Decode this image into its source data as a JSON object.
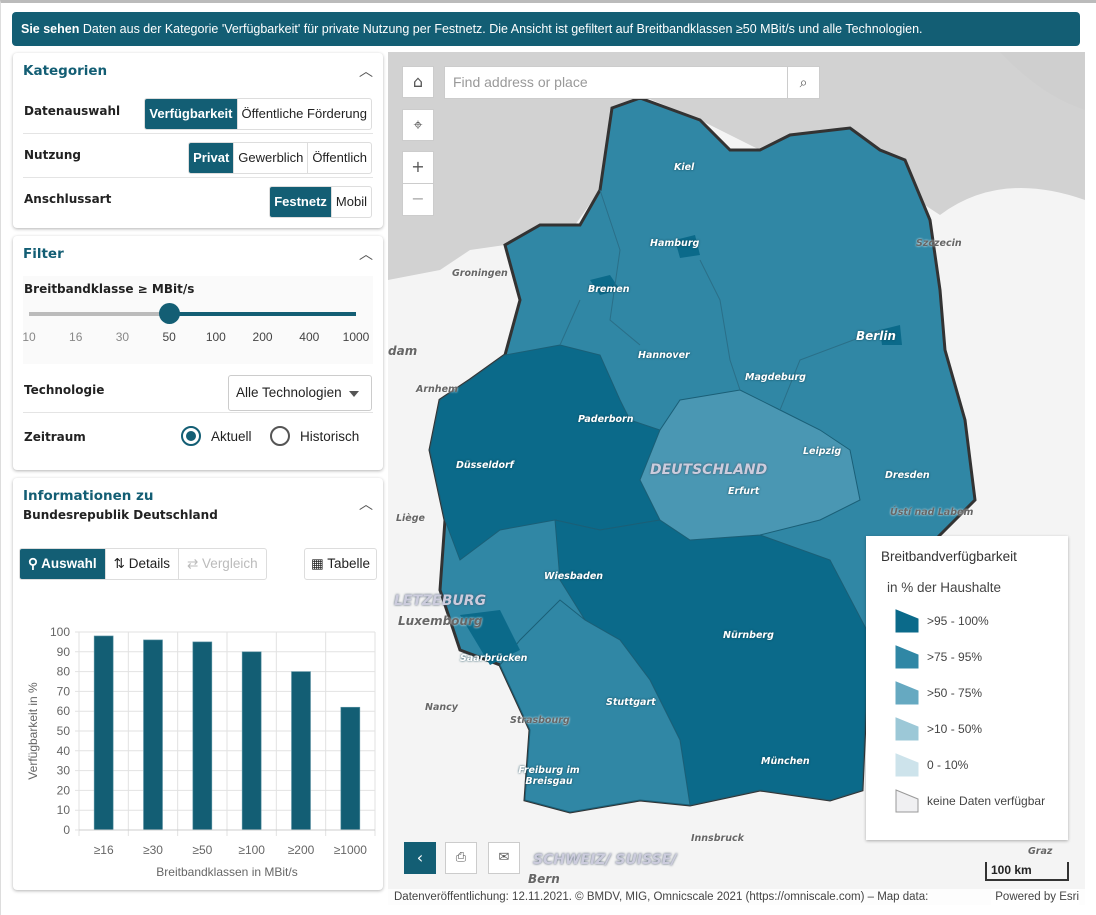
{
  "banner": {
    "bold": "Sie sehen",
    "text": " Daten aus der Kategorie 'Verfügbarkeit' für private Nutzung per Festnetz. Die Ansicht ist gefiltert auf Breitbandklassen ≥50 MBit/s und alle Technologien."
  },
  "kategorien": {
    "title": "Kategorien",
    "rows": [
      {
        "label": "Datenauswahl",
        "options": [
          "Verfügbarkeit",
          "Öffentliche Förderung"
        ],
        "selected": 0
      },
      {
        "label": "Nutzung",
        "options": [
          "Privat",
          "Gewerblich",
          "Öffentlich"
        ],
        "selected": 0
      },
      {
        "label": "Anschlussart",
        "options": [
          "Festnetz",
          "Mobil"
        ],
        "selected": 0
      }
    ]
  },
  "filter": {
    "title": "Filter",
    "slider_label": "Breitbandklasse ≥ MBit/s",
    "ticks": [
      "10",
      "16",
      "30",
      "50",
      "100",
      "200",
      "400",
      "1000"
    ],
    "slider_value": "50",
    "technologie_label": "Technologie",
    "technologie_value": "Alle Technologien",
    "zeitraum_label": "Zeitraum",
    "zeitraum_options": [
      "Aktuell",
      "Historisch"
    ],
    "zeitraum_selected": "Aktuell"
  },
  "info": {
    "title": "Informationen zu",
    "subtitle": "Bundesrepublik Deutschland",
    "tabs": [
      "Auswahl",
      "Details",
      "Vergleich"
    ],
    "table_button": "Tabelle"
  },
  "chart_data": {
    "type": "bar",
    "categories": [
      "≥16",
      "≥30",
      "≥50",
      "≥100",
      "≥200",
      "≥1000"
    ],
    "values": [
      98,
      96,
      95,
      90,
      80,
      62
    ],
    "xlabel": "Breitbandklassen in MBit/s",
    "ylabel": "Verfügbarkeit in %",
    "ylim": [
      0,
      100
    ],
    "yticks": [
      0,
      10,
      20,
      30,
      40,
      50,
      60,
      70,
      80,
      90,
      100
    ],
    "grid": true,
    "color": "#135e74"
  },
  "map": {
    "search_placeholder": "Find address or place",
    "legend": {
      "title": "Breitbandverfügbarkeit",
      "subtitle": "in % der Haushalte",
      "items": [
        {
          "label": ">95 - 100%",
          "color": "#0b6a8a"
        },
        {
          "label": ">75 - 95%",
          "color": "#3087a5"
        },
        {
          "label": ">50 - 75%",
          "color": "#66a9c1"
        },
        {
          "label": ">10 - 50%",
          "color": "#9cc8d7"
        },
        {
          "label": "0 - 10%",
          "color": "#cde3eb"
        },
        {
          "label": "keine Daten verfügbar",
          "color": "#f0f0f2"
        }
      ]
    },
    "scale": "100 km",
    "attribution": "Datenveröffentlichung: 12.11.2021. © BMDV, MIG, Omnicscale 2021 (https://omniscale.com) – Map data:",
    "powered": "Powered by Esri",
    "cities": [
      "Kiel",
      "Hamburg",
      "Szczecin",
      "Groningen",
      "Bremen",
      "Berlin",
      "Hannover",
      "Magdeburg",
      "Arnhem",
      "Paderborn",
      "Düsseldorf",
      "DEUTSCHLAND",
      "Leipzig",
      "Erfurt",
      "Dresden",
      "Liège",
      "Ústí nad Labem",
      "LETZEBURG",
      "Luxembourg",
      "Wiesbaden",
      "Nürnberg",
      "Saarbrücken",
      "Nancy",
      "Stuttgart",
      "Strasbourg",
      "München",
      "Freiburg im Breisgau",
      "Innsbruck",
      "SCHWEIZ/ SUISSE/",
      "Bern",
      "Graz",
      "dam"
    ]
  }
}
